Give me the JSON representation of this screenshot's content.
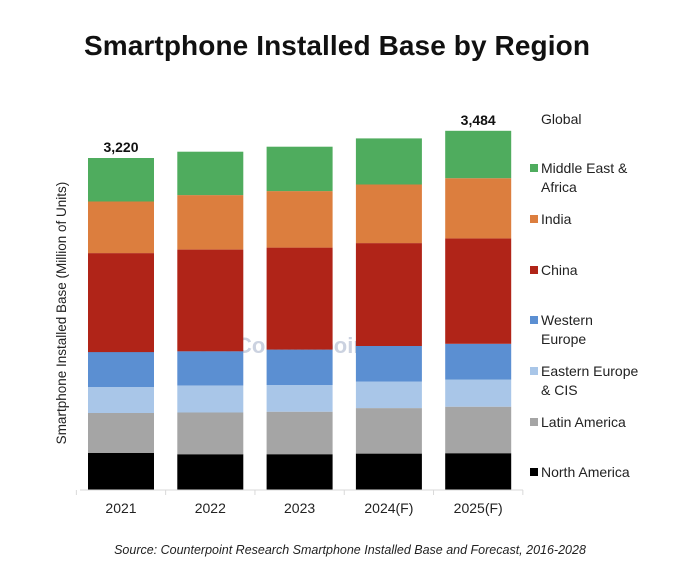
{
  "title": "Smartphone Installed Base by Region",
  "source": "Source: Counterpoint Research Smartphone Installed Base and Forecast, 2016-2028",
  "watermark": "Counterpoint",
  "chart_data": {
    "type": "bar",
    "stacked": true,
    "title": "Smartphone Installed Base by Region",
    "xlabel": "",
    "ylabel": "Smartphone Installed Base (Million of Units)",
    "categories": [
      "2021",
      "2022",
      "2023",
      "2024(F)",
      "2025(F)"
    ],
    "ylim": [
      0,
      3600
    ],
    "grid": false,
    "legend_position": "right",
    "legend_header": "Global",
    "totals_label": {
      "2021": "3,220",
      "2025(F)": "3,484"
    },
    "series": [
      {
        "name": "North America",
        "color": "#000000",
        "values": [
          359,
          347,
          347,
          353,
          357
        ]
      },
      {
        "name": "Latin America",
        "color": "#a5a5a5",
        "values": [
          388,
          405,
          412,
          441,
          451
        ]
      },
      {
        "name": "Eastern Europe & CIS",
        "color": "#a9c6e8",
        "values": [
          252,
          260,
          260,
          259,
          263
        ]
      },
      {
        "name": "Western Europe",
        "color": "#5b8fd2",
        "values": [
          339,
          334,
          343,
          344,
          347
        ]
      },
      {
        "name": "China",
        "color": "#b02418",
        "values": [
          960,
          986,
          989,
          998,
          1022
        ]
      },
      {
        "name": "India",
        "color": "#dc7e3e",
        "values": [
          500,
          528,
          548,
          568,
          584
        ]
      },
      {
        "name": "Middle East & Africa",
        "color": "#4fac5e",
        "values": [
          422,
          421,
          431,
          447,
          460
        ]
      }
    ],
    "legend_labels": [
      [
        "Middle East &",
        "Africa"
      ],
      [
        "India"
      ],
      [
        "China"
      ],
      [
        "Western",
        "Europe"
      ],
      [
        "Eastern Europe",
        "& CIS"
      ],
      [
        "Latin America"
      ],
      [
        "North America"
      ]
    ]
  }
}
